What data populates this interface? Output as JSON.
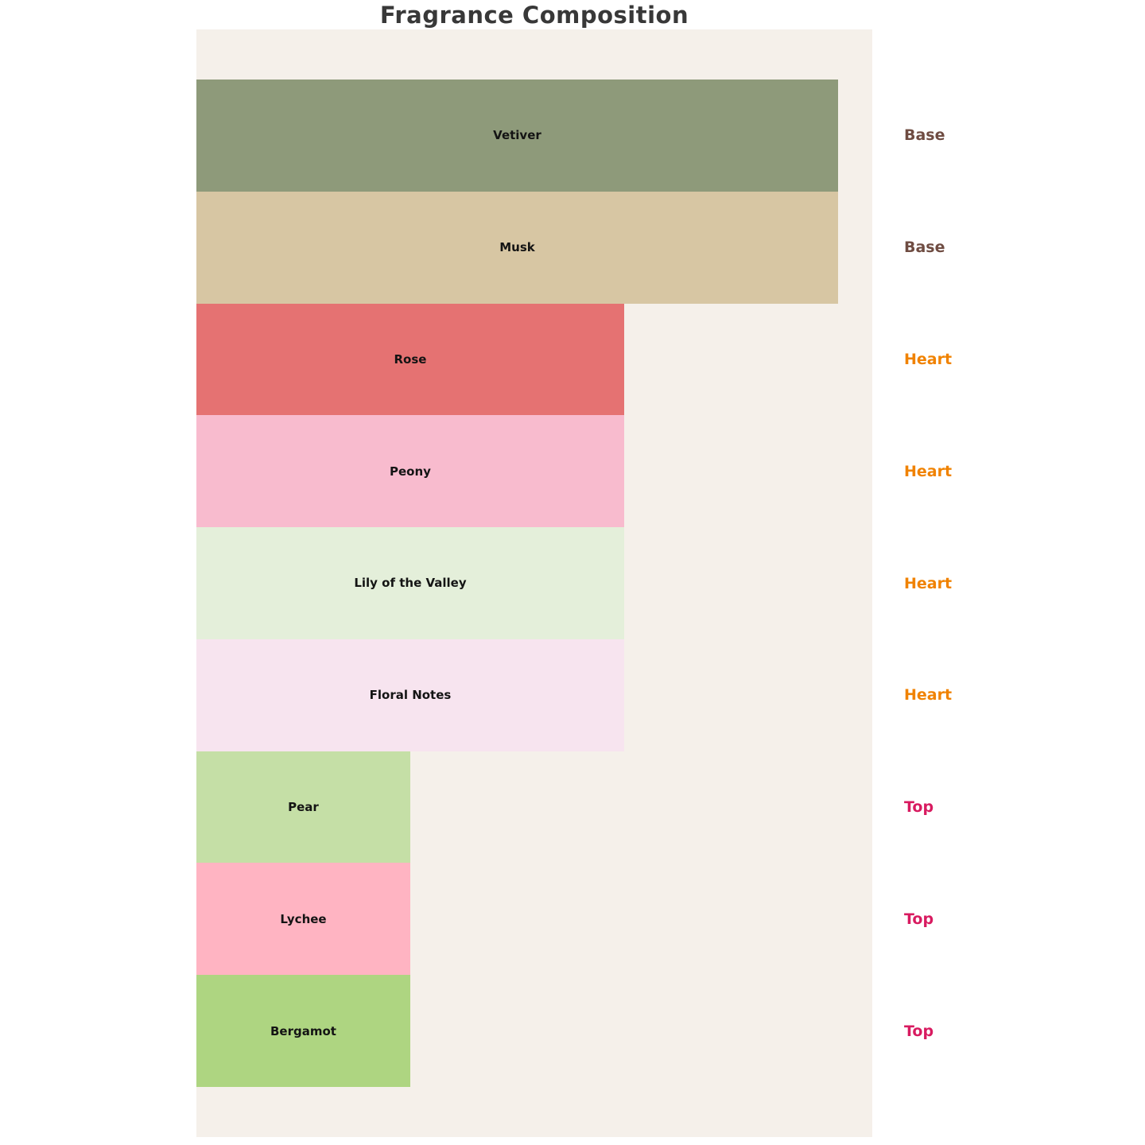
{
  "title": "Fragrance Composition",
  "colors": {
    "page_background": "#FFFFFF",
    "plot_background": "#F5F0EA",
    "title_text": "#383838",
    "bar_label_text": "#141414"
  },
  "category_colors": {
    "Base": "#6F4C42",
    "Heart": "#F08200",
    "Top": "#D81B60"
  },
  "chart_data": {
    "type": "bar",
    "orientation": "horizontal",
    "title": "Fragrance Composition",
    "xlabel": "",
    "ylabel": "",
    "xlim": [
      0,
      3.16
    ],
    "grid": false,
    "axes_visible": false,
    "legend_position": "right-of-plot",
    "categories": [
      "Vetiver",
      "Musk",
      "Rose",
      "Peony",
      "Lily of the Valley",
      "Floral Notes",
      "Pear",
      "Lychee",
      "Bergamot"
    ],
    "values": [
      3,
      2,
      1
    ],
    "bars": [
      {
        "label": "Vetiver",
        "category": "Base",
        "value": 3,
        "color": "#8E9A7A"
      },
      {
        "label": "Musk",
        "category": "Base",
        "value": 3,
        "color": "#D7C6A3"
      },
      {
        "label": "Rose",
        "category": "Heart",
        "value": 2,
        "color": "#E57272"
      },
      {
        "label": "Peony",
        "category": "Heart",
        "value": 2,
        "color": "#F8BBCE"
      },
      {
        "label": "Lily of the Valley",
        "category": "Heart",
        "value": 2,
        "color": "#E4EFDA"
      },
      {
        "label": "Floral Notes",
        "category": "Heart",
        "value": 2,
        "color": "#F7E4EF"
      },
      {
        "label": "Pear",
        "category": "Top",
        "value": 1,
        "color": "#C5DFA6"
      },
      {
        "label": "Lychee",
        "category": "Top",
        "value": 1,
        "color": "#FFB4C2"
      },
      {
        "label": "Bergamot",
        "category": "Top",
        "value": 1,
        "color": "#AED581"
      }
    ]
  }
}
